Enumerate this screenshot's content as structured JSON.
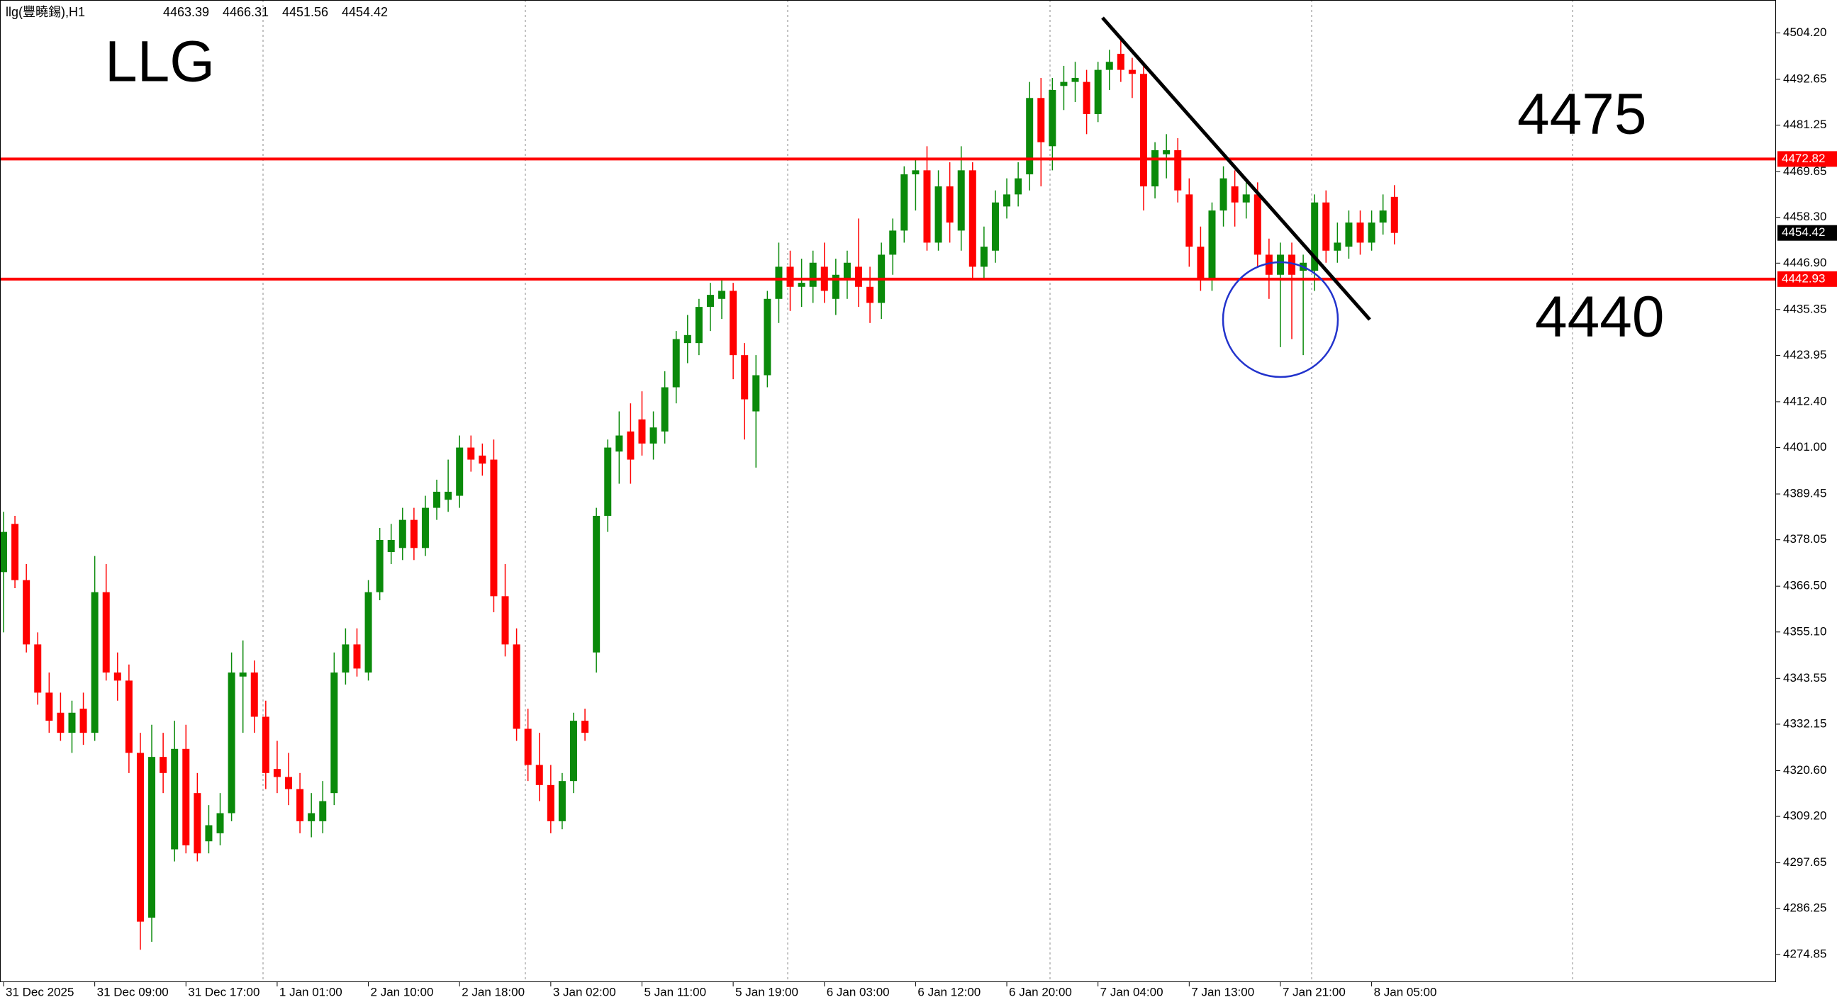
{
  "chart_data": {
    "type": "candlestick",
    "symbol": "llg(豐曉錫),H1",
    "title": "LLG",
    "annotations": [
      "4475",
      "4440"
    ],
    "up_color": "#0a8a0a",
    "down_color": "#ff0000",
    "hline_color": "#ff0000",
    "hlines": [
      4472.82,
      4442.93
    ],
    "categories": [
      "31 Dec 2025",
      null,
      null,
      null,
      null,
      null,
      null,
      null,
      "31 Dec 09:00",
      null,
      null,
      null,
      null,
      null,
      null,
      null,
      "31 Dec 17:00",
      null,
      null,
      null,
      null,
      null,
      null,
      null,
      "1 Jan 01:00",
      null,
      null,
      null,
      null,
      null,
      null,
      null,
      "2 Jan 10:00",
      null,
      null,
      null,
      null,
      null,
      null,
      null,
      "2 Jan 18:00",
      null,
      null,
      null,
      null,
      null,
      null,
      null,
      "3 Jan 02:00",
      null,
      null,
      null,
      null,
      null,
      null,
      null,
      "5 Jan 11:00",
      null,
      null,
      null,
      null,
      null,
      null,
      null,
      "5 Jan 19:00",
      null,
      null,
      null,
      null,
      null,
      null,
      null,
      "6 Jan 03:00",
      null,
      null,
      null,
      null,
      null,
      null,
      null,
      "6 Jan 12:00",
      null,
      null,
      null,
      null,
      null,
      null,
      null,
      "6 Jan 20:00",
      null,
      null,
      null,
      null,
      null,
      null,
      null,
      "7 Jan 04:00",
      null,
      null,
      null,
      null,
      null,
      null,
      null,
      "7 Jan 13:00",
      null,
      null,
      null,
      null,
      null,
      null,
      null,
      "7 Jan 21:00",
      null,
      null,
      null,
      null,
      null,
      null,
      null,
      "8 Jan 05:00",
      null,
      null
    ],
    "candles": [
      [
        4370,
        4385,
        4355,
        4380
      ],
      [
        4382,
        4384,
        4366,
        4368
      ],
      [
        4368,
        4372,
        4350,
        4352
      ],
      [
        4352,
        4355,
        4337,
        4340
      ],
      [
        4340,
        4345,
        4330,
        4333
      ],
      [
        4335,
        4340,
        4328,
        4330
      ],
      [
        4330,
        4338,
        4325,
        4335
      ],
      [
        4336,
        4340,
        4327,
        4330
      ],
      [
        4330,
        4374,
        4328,
        4365
      ],
      [
        4365,
        4372,
        4343,
        4345
      ],
      [
        4345,
        4350,
        4338,
        4343
      ],
      [
        4343,
        4347,
        4320,
        4325
      ],
      [
        4325,
        4330,
        4276,
        4283
      ],
      [
        4284,
        4332,
        4278,
        4324
      ],
      [
        4324,
        4330,
        4315,
        4320
      ],
      [
        4301,
        4333,
        4298,
        4326
      ],
      [
        4326,
        4332,
        4300,
        4302
      ],
      [
        4315,
        4320,
        4298,
        4300
      ],
      [
        4303,
        4312,
        4300,
        4307
      ],
      [
        4305,
        4315,
        4302,
        4310
      ],
      [
        4310,
        4350,
        4308,
        4345
      ],
      [
        4344,
        4353,
        4330,
        4345
      ],
      [
        4345,
        4348,
        4330,
        4334
      ],
      [
        4334,
        4338,
        4316,
        4320
      ],
      [
        4321,
        4328,
        4315,
        4319
      ],
      [
        4319,
        4325,
        4312,
        4316
      ],
      [
        4316,
        4320,
        4305,
        4308
      ],
      [
        4308,
        4315,
        4304,
        4310
      ],
      [
        4308,
        4318,
        4305,
        4313
      ],
      [
        4315,
        4350,
        4312,
        4345
      ],
      [
        4345,
        4356,
        4342,
        4352
      ],
      [
        4352,
        4356,
        4344,
        4346
      ],
      [
        4345,
        4368,
        4343,
        4365
      ],
      [
        4365,
        4381,
        4363,
        4378
      ],
      [
        4375,
        4382,
        4372,
        4378
      ],
      [
        4376,
        4386,
        4373,
        4383
      ],
      [
        4383,
        4386,
        4373,
        4376
      ],
      [
        4376,
        4389,
        4374,
        4386
      ],
      [
        4386,
        4393,
        4383,
        4390
      ],
      [
        4388,
        4398,
        4385,
        4390
      ],
      [
        4389,
        4404,
        4386,
        4401
      ],
      [
        4401,
        4404,
        4395,
        4398
      ],
      [
        4399,
        4402,
        4394,
        4397
      ],
      [
        4398,
        4403,
        4360,
        4364
      ],
      [
        4364,
        4372,
        4349,
        4352
      ],
      [
        4352,
        4356,
        4328,
        4331
      ],
      [
        4331,
        4336,
        4318,
        4322
      ],
      [
        4322,
        4330,
        4313,
        4317
      ],
      [
        4317,
        4322,
        4305,
        4308
      ],
      [
        4308,
        4320,
        4306,
        4318
      ],
      [
        4318,
        4335,
        4315,
        4333
      ],
      [
        4333,
        4336,
        4328,
        4330
      ],
      [
        4350,
        4386,
        4345,
        4384
      ],
      [
        4384,
        4403,
        4380,
        4401
      ],
      [
        4400,
        4410,
        4392,
        4404
      ],
      [
        4405,
        4412,
        4392,
        4398
      ],
      [
        4408,
        4415,
        4399,
        4402
      ],
      [
        4402,
        4410,
        4398,
        4406
      ],
      [
        4405,
        4420,
        4402,
        4416
      ],
      [
        4416,
        4430,
        4412,
        4428
      ],
      [
        4427,
        4434,
        4422,
        4429
      ],
      [
        4427,
        4438,
        4424,
        4436
      ],
      [
        4436,
        4442,
        4430,
        4439
      ],
      [
        4438,
        4443,
        4433,
        4440
      ],
      [
        4440,
        4442,
        4418,
        4424
      ],
      [
        4424,
        4427,
        4403,
        4413
      ],
      [
        4410,
        4424,
        4396,
        4419
      ],
      [
        4419,
        4440,
        4416,
        4438
      ],
      [
        4438,
        4452,
        4432,
        4446
      ],
      [
        4446,
        4450,
        4435,
        4441
      ],
      [
        4441,
        4448,
        4436,
        4442
      ],
      [
        4441,
        4450,
        4437,
        4447
      ],
      [
        4446,
        4452,
        4437,
        4440
      ],
      [
        4438,
        4448,
        4434,
        4444
      ],
      [
        4443,
        4450,
        4438,
        4447
      ],
      [
        4446,
        4458,
        4436,
        4441
      ],
      [
        4441,
        4446,
        4432,
        4437
      ],
      [
        4437,
        4452,
        4433,
        4449
      ],
      [
        4449,
        4458,
        4444,
        4455
      ],
      [
        4455,
        4471,
        4452,
        4469
      ],
      [
        4469,
        4473,
        4460,
        4470
      ],
      [
        4470,
        4476,
        4450,
        4452
      ],
      [
        4452,
        4470,
        4450,
        4466
      ],
      [
        4466,
        4472,
        4452,
        4457
      ],
      [
        4455,
        4476,
        4450,
        4470
      ],
      [
        4470,
        4472,
        4443,
        4446
      ],
      [
        4446,
        4456,
        4443,
        4451
      ],
      [
        4450,
        4465,
        4447,
        4462
      ],
      [
        4461,
        4468,
        4458,
        4464
      ],
      [
        4464,
        4472,
        4461,
        4468
      ],
      [
        4469,
        4492,
        4465,
        4488
      ],
      [
        4488,
        4493,
        4466,
        4477
      ],
      [
        4476,
        4493,
        4470,
        4490
      ],
      [
        4491,
        4496,
        4485,
        4492
      ],
      [
        4492,
        4497,
        4487,
        4493
      ],
      [
        4492,
        4495,
        4479,
        4484
      ],
      [
        4484,
        4497,
        4482,
        4495
      ],
      [
        4495,
        4500,
        4490,
        4497
      ],
      [
        4499,
        4503,
        4492,
        4495
      ],
      [
        4495,
        4498,
        4488,
        4494
      ],
      [
        4494,
        4497,
        4460,
        4466
      ],
      [
        4466,
        4477,
        4463,
        4475
      ],
      [
        4474,
        4479,
        4468,
        4475
      ],
      [
        4475,
        4478,
        4462,
        4465
      ],
      [
        4464,
        4468,
        4446,
        4451
      ],
      [
        4451,
        4456,
        4440,
        4443
      ],
      [
        4443,
        4462,
        4440,
        4460
      ],
      [
        4460,
        4471,
        4456,
        4468
      ],
      [
        4466,
        4470,
        4456,
        4462
      ],
      [
        4462,
        4468,
        4458,
        4464
      ],
      [
        4464,
        4467,
        4446,
        4449
      ],
      [
        4449,
        4453,
        4438,
        4444
      ],
      [
        4444,
        4452,
        4426,
        4449
      ],
      [
        4449,
        4452,
        4428,
        4444
      ],
      [
        4445,
        4449,
        4424,
        4447
      ],
      [
        4445,
        4464,
        4440,
        4462
      ],
      [
        4462,
        4465,
        4447,
        4450
      ],
      [
        4450,
        4457,
        4447,
        4452
      ],
      [
        4451,
        4460,
        4448,
        4457
      ],
      [
        4457,
        4460,
        4449,
        4452
      ],
      [
        4452,
        4460,
        4450,
        4457
      ],
      [
        4457,
        4464,
        4454,
        4460
      ],
      [
        4463.39,
        4466.31,
        4451.56,
        4454.42
      ]
    ],
    "ylim": [
      4267.94,
      4512.39
    ],
    "yticks": [
      {
        "value": 4504.2,
        "label": "4504.20"
      },
      {
        "value": 4492.65,
        "label": "4492.65"
      },
      {
        "value": 4481.25,
        "label": "4481.25"
      },
      {
        "value": 4469.65,
        "label": "4469.65"
      },
      {
        "value": 4458.3,
        "label": "4458.30"
      },
      {
        "value": 4446.9,
        "label": "4446.90"
      },
      {
        "value": 4435.35,
        "label": "4435.35"
      },
      {
        "value": 4423.95,
        "label": "4423.95"
      },
      {
        "value": 4412.4,
        "label": "4412.40"
      },
      {
        "value": 4401,
        "label": "4401.00"
      },
      {
        "value": 4389.45,
        "label": "4389.45"
      },
      {
        "value": 4378.05,
        "label": "4378.05"
      },
      {
        "value": 4366.5,
        "label": "4366.50"
      },
      {
        "value": 4355.1,
        "label": "4355.10"
      },
      {
        "value": 4343.55,
        "label": "4343.55"
      },
      {
        "value": 4332.15,
        "label": "4332.15"
      },
      {
        "value": 4320.6,
        "label": "4320.60"
      },
      {
        "value": 4309.2,
        "label": "4309.20"
      },
      {
        "value": 4297.65,
        "label": "4297.65"
      },
      {
        "value": 4286.25,
        "label": "4286.25"
      },
      {
        "value": 4274.85,
        "label": "4274.85"
      }
    ]
  }
}
